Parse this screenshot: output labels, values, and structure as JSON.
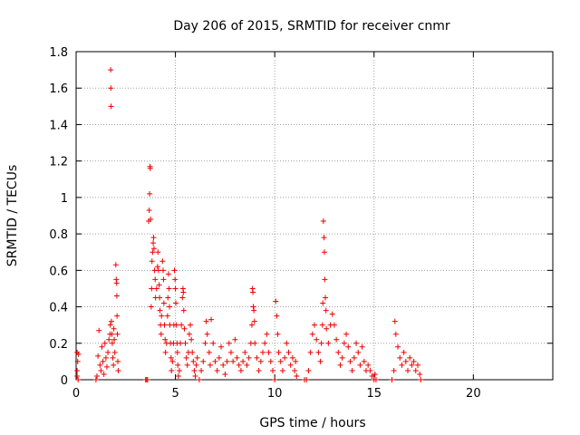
{
  "chart_data": {
    "type": "scatter",
    "title": "Day 206 of 2015, SRMTID for receiver cnmr",
    "xlabel": "GPS time / hours",
    "ylabel": "SRMTID / TECUs",
    "xlim": [
      0,
      24
    ],
    "ylim": [
      0,
      1.8
    ],
    "x_ticks": [
      0,
      5,
      10,
      15,
      20
    ],
    "x_tick_labels": [
      "0",
      "5",
      "10",
      "15",
      "20"
    ],
    "y_ticks": [
      0,
      0.2,
      0.4,
      0.6,
      0.8,
      1.0,
      1.2,
      1.4,
      1.6,
      1.8
    ],
    "y_tick_labels": [
      "0",
      "0.2",
      "0.4",
      "0.6",
      "0.8",
      "1",
      "1.2",
      "1.4",
      "1.6",
      "1.8"
    ],
    "grid": true,
    "marker": "+",
    "series": [
      {
        "name": "SRMTID",
        "color": "#ee0000",
        "points": [
          [
            0.05,
            0.15
          ],
          [
            0.05,
            0.05
          ],
          [
            0.05,
            0.02
          ],
          [
            0.08,
            0.1
          ],
          [
            0.1,
            0.0
          ],
          [
            0.12,
            0.14
          ],
          [
            1.0,
            0.0
          ],
          [
            1.05,
            0.02
          ],
          [
            1.1,
            0.13
          ],
          [
            1.15,
            0.27
          ],
          [
            1.2,
            0.08
          ],
          [
            1.25,
            0.05
          ],
          [
            1.3,
            0.18
          ],
          [
            1.35,
            0.1
          ],
          [
            1.4,
            0.03
          ],
          [
            1.45,
            0.2
          ],
          [
            1.5,
            0.12
          ],
          [
            1.55,
            0.07
          ],
          [
            1.6,
            0.15
          ],
          [
            1.65,
            0.22
          ],
          [
            1.7,
            0.25
          ],
          [
            1.72,
            0.3
          ],
          [
            1.74,
            1.7
          ],
          [
            1.75,
            1.6
          ],
          [
            1.76,
            1.5
          ],
          [
            1.78,
            0.32
          ],
          [
            1.8,
            0.25
          ],
          [
            1.82,
            0.2
          ],
          [
            1.85,
            0.12
          ],
          [
            1.88,
            0.08
          ],
          [
            1.9,
            0.28
          ],
          [
            1.92,
            0.22
          ],
          [
            1.95,
            0.15
          ],
          [
            2.0,
            0.63
          ],
          [
            2.02,
            0.55
          ],
          [
            2.04,
            0.53
          ],
          [
            2.05,
            0.46
          ],
          [
            2.06,
            0.35
          ],
          [
            2.08,
            0.25
          ],
          [
            2.1,
            0.1
          ],
          [
            2.12,
            0.05
          ],
          [
            3.5,
            0.0
          ],
          [
            3.55,
            0.0
          ],
          [
            3.6,
            0.0
          ],
          [
            3.65,
            0.87
          ],
          [
            3.68,
            0.93
          ],
          [
            3.7,
            1.02
          ],
          [
            3.72,
            1.17
          ],
          [
            3.73,
            1.16
          ],
          [
            3.75,
            0.88
          ],
          [
            3.78,
            0.4
          ],
          [
            3.8,
            0.5
          ],
          [
            3.82,
            0.65
          ],
          [
            3.85,
            0.7
          ],
          [
            3.88,
            0.75
          ],
          [
            3.9,
            0.78
          ],
          [
            3.92,
            0.72
          ],
          [
            3.95,
            0.6
          ],
          [
            3.98,
            0.55
          ],
          [
            4.0,
            0.45
          ],
          [
            4.05,
            0.5
          ],
          [
            4.1,
            0.62
          ],
          [
            4.12,
            0.7
          ],
          [
            4.15,
            0.6
          ],
          [
            4.18,
            0.52
          ],
          [
            4.2,
            0.45
          ],
          [
            4.22,
            0.38
          ],
          [
            4.25,
            0.3
          ],
          [
            4.28,
            0.25
          ],
          [
            4.3,
            0.35
          ],
          [
            4.35,
            0.65
          ],
          [
            4.38,
            0.6
          ],
          [
            4.4,
            0.55
          ],
          [
            4.42,
            0.42
          ],
          [
            4.45,
            0.3
          ],
          [
            4.48,
            0.22
          ],
          [
            4.5,
            0.15
          ],
          [
            4.55,
            0.2
          ],
          [
            4.6,
            0.35
          ],
          [
            4.62,
            0.45
          ],
          [
            4.65,
            0.58
          ],
          [
            4.68,
            0.5
          ],
          [
            4.7,
            0.4
          ],
          [
            4.72,
            0.3
          ],
          [
            4.75,
            0.2
          ],
          [
            4.78,
            0.12
          ],
          [
            4.8,
            0.05
          ],
          [
            4.85,
            0.1
          ],
          [
            4.9,
            0.2
          ],
          [
            4.92,
            0.3
          ],
          [
            4.95,
            0.6
          ],
          [
            4.98,
            0.55
          ],
          [
            5.0,
            0.5
          ],
          [
            5.02,
            0.42
          ],
          [
            5.05,
            0.3
          ],
          [
            5.08,
            0.2
          ],
          [
            5.1,
            0.15
          ],
          [
            5.12,
            0.08
          ],
          [
            5.15,
            0.02
          ],
          [
            5.2,
            0.05
          ],
          [
            5.25,
            0.2
          ],
          [
            5.3,
            0.3
          ],
          [
            5.35,
            0.45
          ],
          [
            5.38,
            0.5
          ],
          [
            5.4,
            0.48
          ],
          [
            5.42,
            0.38
          ],
          [
            5.45,
            0.28
          ],
          [
            5.5,
            0.2
          ],
          [
            5.55,
            0.12
          ],
          [
            5.6,
            0.08
          ],
          [
            5.65,
            0.15
          ],
          [
            5.7,
            0.25
          ],
          [
            5.75,
            0.3
          ],
          [
            5.8,
            0.22
          ],
          [
            5.85,
            0.15
          ],
          [
            5.9,
            0.1
          ],
          [
            5.95,
            0.05
          ],
          [
            6.0,
            0.02
          ],
          [
            6.05,
            0.08
          ],
          [
            6.1,
            0.12
          ],
          [
            6.2,
            0.0
          ],
          [
            6.3,
            0.05
          ],
          [
            6.4,
            0.1
          ],
          [
            6.5,
            0.2
          ],
          [
            6.55,
            0.32
          ],
          [
            6.6,
            0.25
          ],
          [
            6.7,
            0.15
          ],
          [
            6.75,
            0.08
          ],
          [
            6.8,
            0.33
          ],
          [
            6.9,
            0.2
          ],
          [
            7.0,
            0.1
          ],
          [
            7.1,
            0.05
          ],
          [
            7.2,
            0.12
          ],
          [
            7.3,
            0.18
          ],
          [
            7.4,
            0.08
          ],
          [
            7.5,
            0.03
          ],
          [
            7.6,
            0.1
          ],
          [
            7.7,
            0.2
          ],
          [
            7.8,
            0.15
          ],
          [
            7.9,
            0.1
          ],
          [
            8.0,
            0.22
          ],
          [
            8.1,
            0.12
          ],
          [
            8.2,
            0.08
          ],
          [
            8.3,
            0.05
          ],
          [
            8.4,
            0.1
          ],
          [
            8.5,
            0.15
          ],
          [
            8.6,
            0.08
          ],
          [
            8.7,
            0.12
          ],
          [
            8.8,
            0.2
          ],
          [
            8.85,
            0.3
          ],
          [
            8.88,
            0.5
          ],
          [
            8.9,
            0.48
          ],
          [
            8.92,
            0.4
          ],
          [
            8.95,
            0.38
          ],
          [
            8.98,
            0.32
          ],
          [
            9.0,
            0.2
          ],
          [
            9.1,
            0.12
          ],
          [
            9.2,
            0.05
          ],
          [
            9.3,
            0.1
          ],
          [
            9.4,
            0.15
          ],
          [
            9.5,
            0.2
          ],
          [
            9.6,
            0.25
          ],
          [
            9.7,
            0.15
          ],
          [
            9.8,
            0.1
          ],
          [
            9.9,
            0.05
          ],
          [
            10.0,
            0.0
          ],
          [
            10.05,
            0.43
          ],
          [
            10.1,
            0.35
          ],
          [
            10.15,
            0.25
          ],
          [
            10.2,
            0.15
          ],
          [
            10.3,
            0.1
          ],
          [
            10.4,
            0.05
          ],
          [
            10.5,
            0.12
          ],
          [
            10.6,
            0.2
          ],
          [
            10.7,
            0.15
          ],
          [
            10.8,
            0.08
          ],
          [
            10.9,
            0.12
          ],
          [
            11.0,
            0.05
          ],
          [
            11.05,
            0.1
          ],
          [
            11.1,
            0.02
          ],
          [
            11.5,
            0.0
          ],
          [
            11.6,
            0.0
          ],
          [
            11.7,
            0.05
          ],
          [
            11.8,
            0.15
          ],
          [
            11.9,
            0.25
          ],
          [
            12.0,
            0.3
          ],
          [
            12.1,
            0.22
          ],
          [
            12.2,
            0.15
          ],
          [
            12.3,
            0.1
          ],
          [
            12.35,
            0.2
          ],
          [
            12.4,
            0.3
          ],
          [
            12.42,
            0.42
          ],
          [
            12.45,
            0.87
          ],
          [
            12.48,
            0.78
          ],
          [
            12.5,
            0.7
          ],
          [
            12.52,
            0.55
          ],
          [
            12.55,
            0.45
          ],
          [
            12.58,
            0.38
          ],
          [
            12.6,
            0.28
          ],
          [
            12.7,
            0.2
          ],
          [
            12.8,
            0.3
          ],
          [
            12.9,
            0.36
          ],
          [
            13.0,
            0.3
          ],
          [
            13.1,
            0.22
          ],
          [
            13.2,
            0.15
          ],
          [
            13.3,
            0.08
          ],
          [
            13.4,
            0.12
          ],
          [
            13.5,
            0.2
          ],
          [
            13.6,
            0.25
          ],
          [
            13.7,
            0.18
          ],
          [
            13.8,
            0.1
          ],
          [
            13.9,
            0.05
          ],
          [
            14.0,
            0.12
          ],
          [
            14.1,
            0.2
          ],
          [
            14.2,
            0.15
          ],
          [
            14.3,
            0.08
          ],
          [
            14.4,
            0.18
          ],
          [
            14.5,
            0.1
          ],
          [
            14.6,
            0.05
          ],
          [
            14.7,
            0.08
          ],
          [
            14.8,
            0.05
          ],
          [
            14.9,
            0.02
          ],
          [
            15.0,
            0.0
          ],
          [
            15.05,
            0.03
          ],
          [
            15.1,
            0.0
          ],
          [
            15.9,
            0.0
          ],
          [
            16.0,
            0.05
          ],
          [
            16.05,
            0.32
          ],
          [
            16.1,
            0.25
          ],
          [
            16.2,
            0.18
          ],
          [
            16.3,
            0.12
          ],
          [
            16.4,
            0.08
          ],
          [
            16.5,
            0.15
          ],
          [
            16.6,
            0.1
          ],
          [
            16.7,
            0.05
          ],
          [
            16.8,
            0.12
          ],
          [
            16.9,
            0.08
          ],
          [
            17.0,
            0.1
          ],
          [
            17.1,
            0.05
          ],
          [
            17.2,
            0.08
          ],
          [
            17.3,
            0.03
          ],
          [
            17.35,
            0.0
          ]
        ]
      }
    ]
  }
}
